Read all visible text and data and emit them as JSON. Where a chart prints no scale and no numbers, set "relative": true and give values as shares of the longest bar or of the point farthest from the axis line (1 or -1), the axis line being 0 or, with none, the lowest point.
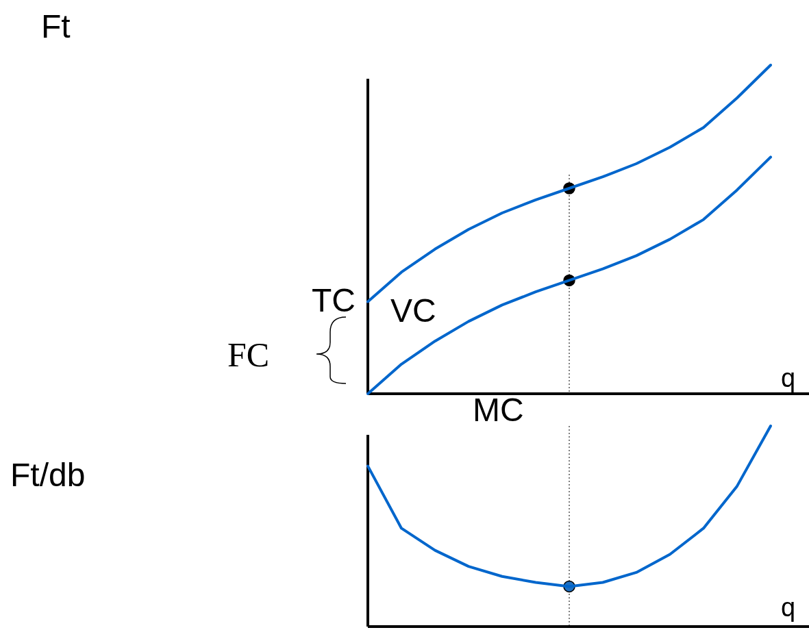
{
  "chart_data": [
    {
      "type": "line",
      "relative": true,
      "ylabel": "Ft",
      "xlabel": "q",
      "categories": [
        null,
        null,
        null,
        null,
        null,
        null,
        null,
        null,
        null,
        null,
        null,
        null,
        null
      ],
      "series": [
        {
          "name": "TC",
          "color": "#0066cc",
          "values": [
            0.28,
            0.37,
            0.44,
            0.5,
            0.55,
            0.59,
            0.625,
            0.66,
            0.7,
            0.75,
            0.81,
            0.9,
            1
          ]
        },
        {
          "name": "VC",
          "color": "#0066cc",
          "values": [
            0,
            0.09,
            0.16,
            0.22,
            0.27,
            0.31,
            0.345,
            0.38,
            0.42,
            0.47,
            0.53,
            0.62,
            0.72
          ]
        }
      ],
      "annotations": [
        "FC"
      ]
    },
    {
      "type": "line",
      "relative": true,
      "ylabel": "Ft/db",
      "xlabel": "q",
      "categories": [
        null,
        null,
        null,
        null,
        null,
        null,
        null,
        null,
        null,
        null,
        null,
        null,
        null
      ],
      "series": [
        {
          "name": "MC",
          "color": "#0066cc",
          "values": [
            0.8,
            0.49,
            0.38,
            0.3,
            0.25,
            0.22,
            0.2,
            0.22,
            0.27,
            0.36,
            0.49,
            0.7,
            1
          ]
        }
      ]
    }
  ]
}
